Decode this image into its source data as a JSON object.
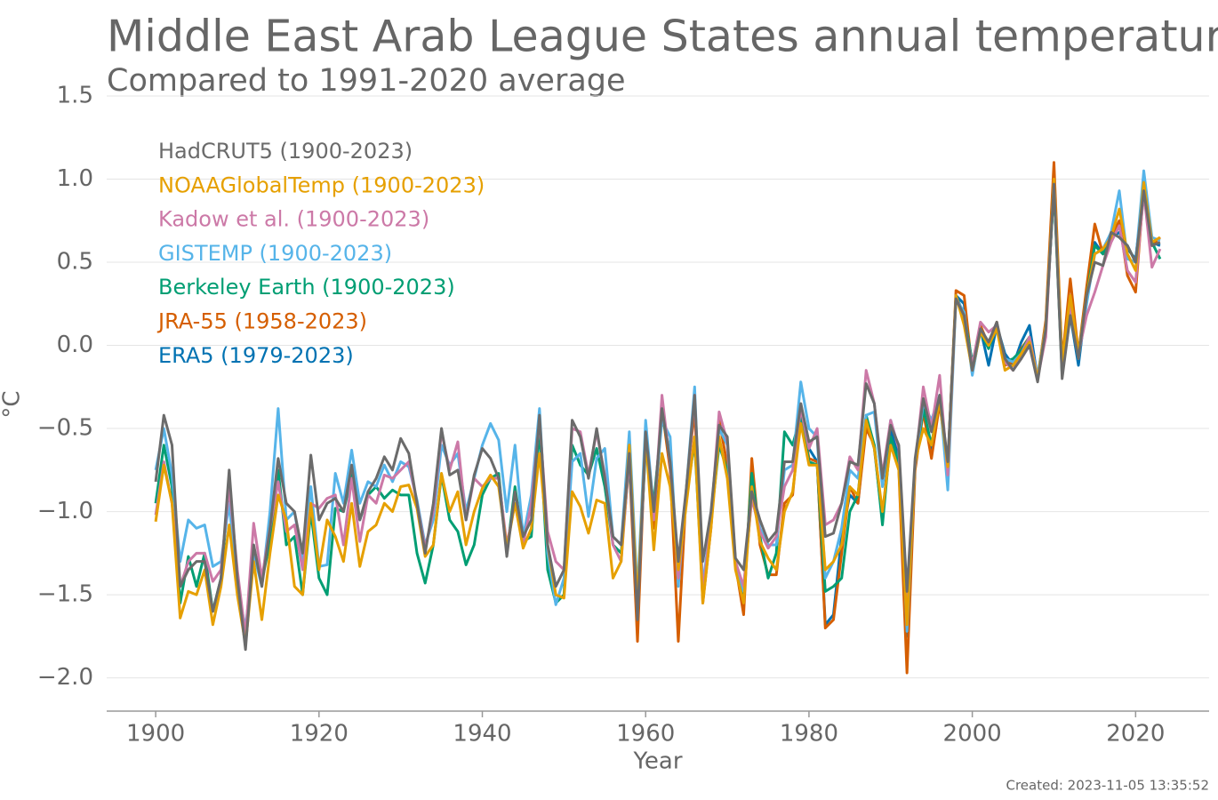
{
  "chart_data": {
    "type": "line",
    "title": "Middle East Arab League States annual temperature",
    "subtitle": "Compared to 1991-2020 average",
    "x_label": "Year",
    "y_label": "°C",
    "footnote": "Created: 2023-11-05 13:35:52",
    "legend": "upper left",
    "grid": true,
    "xlim": [
      1894,
      2029
    ],
    "xticks": [
      1900,
      1920,
      1940,
      1960,
      1980,
      2000,
      2020
    ],
    "ylim": [
      -2.2,
      1.5
    ],
    "yticks": [
      {
        "value": -2,
        "label": "−2.0"
      },
      {
        "value": -1.5,
        "label": "−1.5"
      },
      {
        "value": -1,
        "label": "−1.0"
      },
      {
        "value": -0.5,
        "label": "−0.5"
      },
      {
        "value": 0,
        "label": "0.0"
      },
      0.5,
      {
        "value": 1,
        "label": "1.0"
      },
      1.5
    ],
    "x": [
      1900,
      1901,
      1902,
      1903,
      1904,
      1905,
      1906,
      1907,
      1908,
      1909,
      1910,
      1911,
      1912,
      1913,
      1914,
      1915,
      1916,
      1917,
      1918,
      1919,
      1920,
      1921,
      1922,
      1923,
      1924,
      1925,
      1926,
      1927,
      1928,
      1929,
      1930,
      1931,
      1932,
      1933,
      1934,
      1935,
      1936,
      1937,
      1938,
      1939,
      1940,
      1941,
      1942,
      1943,
      1944,
      1945,
      1946,
      1947,
      1948,
      1949,
      1950,
      1951,
      1952,
      1953,
      1954,
      1955,
      1956,
      1957,
      1958,
      1959,
      1960,
      1961,
      1962,
      1963,
      1964,
      1965,
      1966,
      1967,
      1968,
      1969,
      1970,
      1971,
      1972,
      1973,
      1974,
      1975,
      1976,
      1977,
      1978,
      1979,
      1980,
      1981,
      1982,
      1983,
      1984,
      1985,
      1986,
      1987,
      1988,
      1989,
      1990,
      1991,
      1992,
      1993,
      1994,
      1995,
      1996,
      1997,
      1998,
      1999,
      2000,
      2001,
      2002,
      2003,
      2004,
      2005,
      2006,
      2007,
      2008,
      2009,
      2010,
      2011,
      2012,
      2013,
      2014,
      2015,
      2016,
      2017,
      2018,
      2019,
      2020,
      2021,
      2022,
      2023
    ],
    "series": [
      {
        "name": "HadCRUT5 (1900-2023)",
        "color": "#6b6b6b",
        "values": [
          -0.82,
          -0.42,
          -0.6,
          -1.45,
          -1.35,
          -1.3,
          -1.3,
          -1.6,
          -1.4,
          -0.75,
          -1.4,
          -1.83,
          -1.2,
          -1.45,
          -1.1,
          -0.68,
          -0.95,
          -1.0,
          -1.25,
          -0.66,
          -1.05,
          -0.95,
          -0.92,
          -1.0,
          -0.72,
          -1.05,
          -0.88,
          -0.8,
          -0.67,
          -0.75,
          -0.56,
          -0.65,
          -0.95,
          -1.25,
          -0.95,
          -0.5,
          -0.78,
          -0.75,
          -1.05,
          -0.78,
          -0.62,
          -0.68,
          -0.8,
          -1.27,
          -0.88,
          -1.15,
          -1.05,
          -0.42,
          -1.2,
          -1.45,
          -1.35,
          -0.45,
          -0.55,
          -0.8,
          -0.5,
          -0.8,
          -1.15,
          -1.2,
          -0.65,
          -1.65,
          -0.52,
          -1.0,
          -0.38,
          -0.7,
          -1.3,
          -0.85,
          -0.3,
          -1.3,
          -1.0,
          -0.48,
          -0.55,
          -1.28,
          -1.35,
          -0.88,
          -1.05,
          -1.18,
          -1.12,
          -0.7,
          -0.7,
          -0.35,
          -0.58,
          -0.55,
          -1.15,
          -1.13,
          -0.95,
          -0.7,
          -0.72,
          -0.23,
          -0.35,
          -0.8,
          -0.48,
          -0.6,
          -1.48,
          -0.68,
          -0.32,
          -0.52,
          -0.3,
          -0.7,
          0.28,
          0.18,
          -0.15,
          0.1,
          0.02,
          0.14,
          -0.08,
          -0.15,
          -0.08,
          0.0,
          -0.22,
          0.1,
          0.97,
          -0.2,
          0.18,
          -0.08,
          0.3,
          0.5,
          0.48,
          0.68,
          0.65,
          0.6,
          0.5,
          0.93,
          0.6,
          0.62
        ]
      },
      {
        "name": "NOAAGlobalTemp (1900-2023)",
        "color": "#e6a000",
        "values": [
          -1.06,
          -0.72,
          -0.95,
          -1.64,
          -1.48,
          -1.5,
          -1.35,
          -1.68,
          -1.45,
          -1.08,
          -1.5,
          -1.8,
          -1.3,
          -1.65,
          -1.25,
          -0.9,
          -1.05,
          -1.45,
          -1.5,
          -0.95,
          -1.35,
          -1.05,
          -1.15,
          -1.3,
          -0.95,
          -1.33,
          -1.12,
          -1.08,
          -0.95,
          -1.0,
          -0.85,
          -0.84,
          -0.98,
          -1.27,
          -1.2,
          -0.77,
          -1.0,
          -0.88,
          -1.2,
          -1.0,
          -0.86,
          -0.78,
          -0.85,
          -1.22,
          -0.95,
          -1.22,
          -1.1,
          -0.65,
          -1.2,
          -1.5,
          -1.52,
          -0.88,
          -0.97,
          -1.13,
          -0.93,
          -0.95,
          -1.4,
          -1.3,
          -0.6,
          -1.55,
          -0.55,
          -1.23,
          -0.65,
          -0.85,
          -1.35,
          -0.95,
          -0.55,
          -1.55,
          -1.1,
          -0.55,
          -0.8,
          -1.35,
          -1.55,
          -0.85,
          -1.18,
          -1.28,
          -1.35,
          -1.0,
          -0.88,
          -0.47,
          -0.72,
          -0.72,
          -1.35,
          -1.3,
          -1.2,
          -0.85,
          -0.9,
          -0.45,
          -0.62,
          -1.0,
          -0.6,
          -0.75,
          -1.68,
          -0.7,
          -0.5,
          -0.6,
          -0.33,
          -0.73,
          0.3,
          0.12,
          -0.15,
          0.08,
          0.0,
          0.1,
          -0.15,
          -0.12,
          -0.05,
          0.02,
          -0.2,
          0.12,
          1.0,
          -0.1,
          0.3,
          -0.05,
          0.3,
          0.55,
          0.58,
          0.65,
          0.82,
          0.55,
          0.45,
          0.98,
          0.62,
          0.65
        ]
      },
      {
        "name": "Kadow et al. (1900-2023)",
        "color": "#cc79a7",
        "values": [
          -1.02,
          -0.7,
          -0.95,
          -1.45,
          -1.3,
          -1.25,
          -1.25,
          -1.42,
          -1.35,
          -0.85,
          -1.35,
          -1.75,
          -1.07,
          -1.4,
          -1.1,
          -0.82,
          -1.12,
          -1.08,
          -1.35,
          -0.95,
          -0.98,
          -0.92,
          -0.9,
          -1.2,
          -0.8,
          -1.18,
          -0.9,
          -0.95,
          -0.78,
          -0.8,
          -0.75,
          -0.7,
          -0.95,
          -1.22,
          -1.0,
          -0.52,
          -0.75,
          -0.58,
          -1.05,
          -0.8,
          -0.85,
          -0.8,
          -0.8,
          -1.2,
          -0.95,
          -1.2,
          -0.95,
          -0.45,
          -1.12,
          -1.3,
          -1.35,
          -0.5,
          -0.52,
          -0.78,
          -0.52,
          -0.78,
          -1.2,
          -1.3,
          -0.67,
          -1.63,
          -0.57,
          -1.05,
          -0.3,
          -0.72,
          -1.4,
          -0.9,
          -0.3,
          -1.5,
          -1.05,
          -0.4,
          -0.58,
          -1.3,
          -1.45,
          -0.92,
          -1.12,
          -1.22,
          -1.15,
          -0.85,
          -0.75,
          -0.38,
          -0.62,
          -0.5,
          -1.08,
          -1.05,
          -0.95,
          -0.67,
          -0.75,
          -0.15,
          -0.35,
          -0.78,
          -0.45,
          -0.62,
          -1.6,
          -0.72,
          -0.25,
          -0.5,
          -0.18,
          -0.78,
          0.3,
          0.15,
          -0.12,
          0.14,
          0.08,
          0.12,
          -0.1,
          -0.15,
          -0.05,
          0.05,
          -0.2,
          0.05,
          1.0,
          -0.15,
          0.25,
          -0.05,
          0.18,
          0.32,
          0.48,
          0.62,
          0.72,
          0.45,
          0.38,
          0.92,
          0.47,
          0.58
        ]
      },
      {
        "name": "GISTEMP (1900-2023)",
        "color": "#56b4e9",
        "values": [
          -0.75,
          -0.5,
          -0.78,
          -1.3,
          -1.05,
          -1.1,
          -1.08,
          -1.33,
          -1.3,
          -0.95,
          -1.45,
          -1.7,
          -1.25,
          -1.45,
          -1.0,
          -0.38,
          -1.05,
          -1.0,
          -1.3,
          -0.85,
          -1.33,
          -1.32,
          -0.77,
          -0.95,
          -0.63,
          -0.95,
          -0.82,
          -0.85,
          -0.72,
          -0.82,
          -0.7,
          -0.73,
          -0.93,
          -1.2,
          -1.05,
          -0.6,
          -0.72,
          -0.65,
          -1.0,
          -0.8,
          -0.6,
          -0.47,
          -0.57,
          -1.0,
          -0.6,
          -1.15,
          -0.9,
          -0.38,
          -1.25,
          -1.56,
          -1.4,
          -0.7,
          -0.65,
          -1.03,
          -0.68,
          -0.62,
          -1.15,
          -1.2,
          -0.52,
          -1.5,
          -0.45,
          -1.0,
          -0.45,
          -0.55,
          -1.45,
          -0.85,
          -0.25,
          -1.45,
          -1.05,
          -0.5,
          -0.6,
          -1.3,
          -1.48,
          -0.9,
          -1.1,
          -1.2,
          -1.2,
          -0.75,
          -0.72,
          -0.22,
          -0.5,
          -0.55,
          -1.4,
          -1.3,
          -1.1,
          -0.75,
          -0.8,
          -0.42,
          -0.4,
          -0.85,
          -0.45,
          -0.62,
          -1.72,
          -0.7,
          -0.35,
          -0.45,
          -0.3,
          -0.87,
          0.28,
          0.2,
          -0.18,
          0.1,
          0.0,
          0.12,
          -0.08,
          -0.1,
          -0.05,
          0.03,
          -0.18,
          0.12,
          0.98,
          -0.12,
          0.22,
          -0.08,
          0.25,
          0.55,
          0.58,
          0.68,
          0.93,
          0.52,
          0.5,
          1.05,
          0.65,
          0.63
        ]
      },
      {
        "name": "Berkeley Earth (1900-2023)",
        "color": "#009e73",
        "values": [
          -0.95,
          -0.6,
          -0.85,
          -1.55,
          -1.27,
          -1.45,
          -1.25,
          -1.6,
          -1.4,
          -0.85,
          -1.4,
          -1.78,
          -1.22,
          -1.42,
          -1.18,
          -0.75,
          -1.2,
          -1.15,
          -1.5,
          -1.0,
          -1.4,
          -1.5,
          -0.98,
          -1.0,
          -0.78,
          -1.05,
          -0.9,
          -0.85,
          -0.92,
          -0.87,
          -0.9,
          -0.9,
          -1.25,
          -1.43,
          -1.2,
          -0.78,
          -1.05,
          -1.12,
          -1.32,
          -1.2,
          -0.9,
          -0.8,
          -0.77,
          -1.25,
          -0.85,
          -1.18,
          -1.15,
          -0.5,
          -1.35,
          -1.55,
          -1.5,
          -0.6,
          -0.72,
          -0.78,
          -0.62,
          -0.85,
          -1.2,
          -1.25,
          -0.7,
          -1.55,
          -0.62,
          -0.95,
          -0.42,
          -0.65,
          -1.4,
          -0.9,
          -0.58,
          -1.5,
          -1.05,
          -0.6,
          -0.75,
          -1.3,
          -1.5,
          -0.77,
          -1.15,
          -1.4,
          -1.25,
          -0.52,
          -0.6,
          -0.42,
          -0.7,
          -0.72,
          -1.48,
          -1.45,
          -1.4,
          -1.0,
          -0.9,
          -0.42,
          -0.6,
          -1.08,
          -0.55,
          -0.7,
          -1.65,
          -0.72,
          -0.38,
          -0.6,
          -0.3,
          -0.75,
          0.3,
          0.18,
          -0.1,
          0.08,
          -0.02,
          0.12,
          -0.1,
          -0.08,
          -0.03,
          0.05,
          -0.2,
          0.1,
          0.95,
          -0.18,
          0.2,
          -0.05,
          0.3,
          0.6,
          0.55,
          0.68,
          0.65,
          0.6,
          0.5,
          0.9,
          0.62,
          0.52
        ]
      },
      {
        "name": "JRA-55 (1958-2023)",
        "color": "#d55e00",
        "values": [
          null,
          null,
          null,
          null,
          null,
          null,
          null,
          null,
          null,
          null,
          null,
          null,
          null,
          null,
          null,
          null,
          null,
          null,
          null,
          null,
          null,
          null,
          null,
          null,
          null,
          null,
          null,
          null,
          null,
          null,
          null,
          null,
          null,
          null,
          null,
          null,
          null,
          null,
          null,
          null,
          null,
          null,
          null,
          null,
          null,
          null,
          null,
          null,
          null,
          null,
          null,
          null,
          null,
          null,
          null,
          null,
          null,
          null,
          -0.7,
          -1.78,
          -0.52,
          -1.1,
          -0.38,
          -0.75,
          -1.78,
          -0.85,
          -0.38,
          -1.55,
          -1.1,
          -0.45,
          -0.72,
          -1.32,
          -1.62,
          -0.68,
          -1.2,
          -1.38,
          -1.38,
          -0.95,
          -0.9,
          -0.4,
          -0.68,
          -0.7,
          -1.7,
          -1.65,
          -1.25,
          -0.85,
          -0.95,
          -0.5,
          -0.6,
          -1.05,
          -0.55,
          -0.75,
          -1.97,
          -0.75,
          -0.4,
          -0.68,
          -0.35,
          -0.72,
          0.33,
          0.3,
          -0.15,
          0.12,
          0.0,
          0.14,
          -0.12,
          -0.1,
          -0.02,
          0.05,
          -0.2,
          0.15,
          1.1,
          -0.1,
          0.4,
          -0.05,
          0.35,
          0.73,
          0.55,
          0.65,
          0.75,
          0.42,
          0.32,
          0.95,
          0.6,
          0.65
        ]
      },
      {
        "name": "ERA5 (1979-2023)",
        "color": "#0072b2",
        "values": [
          null,
          null,
          null,
          null,
          null,
          null,
          null,
          null,
          null,
          null,
          null,
          null,
          null,
          null,
          null,
          null,
          null,
          null,
          null,
          null,
          null,
          null,
          null,
          null,
          null,
          null,
          null,
          null,
          null,
          null,
          null,
          null,
          null,
          null,
          null,
          null,
          null,
          null,
          null,
          null,
          null,
          null,
          null,
          null,
          null,
          null,
          null,
          null,
          null,
          null,
          null,
          null,
          null,
          null,
          null,
          null,
          null,
          null,
          null,
          null,
          null,
          null,
          null,
          null,
          null,
          null,
          null,
          null,
          null,
          null,
          null,
          null,
          null,
          null,
          null,
          null,
          null,
          null,
          null,
          -0.35,
          -0.62,
          -0.7,
          -1.68,
          -1.62,
          -1.15,
          -0.9,
          -0.95,
          -0.45,
          -0.62,
          -1.05,
          -0.5,
          -0.68,
          -1.75,
          -0.72,
          -0.38,
          -0.62,
          -0.33,
          -0.72,
          0.3,
          0.25,
          -0.17,
          0.1,
          -0.12,
          0.12,
          -0.05,
          -0.12,
          0.02,
          0.12,
          -0.2,
          0.12,
          0.95,
          -0.1,
          0.18,
          -0.12,
          0.28,
          0.62,
          0.55,
          0.65,
          0.68,
          0.58,
          0.52,
          0.95,
          0.62,
          0.6
        ]
      }
    ]
  }
}
